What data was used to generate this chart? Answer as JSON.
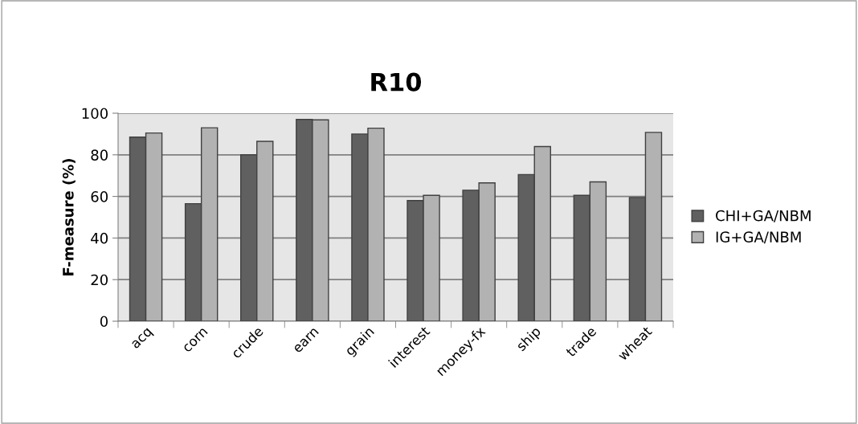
{
  "chart_data": {
    "type": "bar",
    "title": "R10",
    "ylabel": "F-measure (%)",
    "categories": [
      "acq",
      "corn",
      "crude",
      "earn",
      "grain",
      "interest",
      "money-fx",
      "ship",
      "trade",
      "wheat"
    ],
    "series": [
      {
        "name": "CHI+GA/NBM",
        "color": "#606060",
        "values": [
          88.5,
          56.5,
          80,
          97,
          90,
          58,
          63,
          70.5,
          60.5,
          59.5
        ]
      },
      {
        "name": "IG+GA/NBM",
        "color": "#b2b2b2",
        "values": [
          90.5,
          93,
          86.5,
          96.8,
          92.8,
          60.5,
          66.5,
          84,
          67,
          90.8
        ]
      }
    ],
    "ylim": [
      0,
      100
    ],
    "yticks": [
      0,
      20,
      40,
      60,
      80,
      100
    ],
    "grid": "y",
    "legend": "right"
  }
}
